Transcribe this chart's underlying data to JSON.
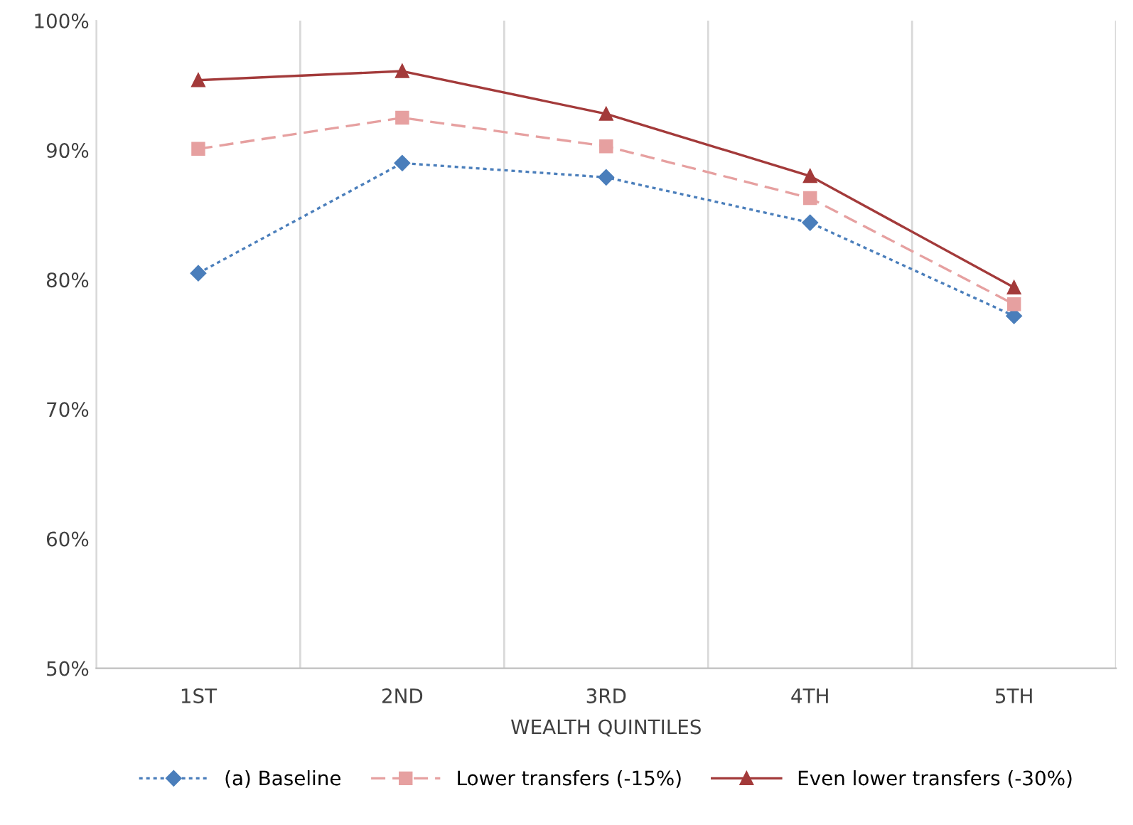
{
  "chart_data": {
    "type": "line",
    "xlabel": "WEALTH QUINTILES",
    "categories": [
      "1ST",
      "2ND",
      "3RD",
      "4TH",
      "5TH"
    ],
    "ylim": [
      50,
      100
    ],
    "yticks": [
      {
        "value": 50,
        "label": "50%"
      },
      {
        "value": 60,
        "label": "60%"
      },
      {
        "value": 70,
        "label": "70%"
      },
      {
        "value": 80,
        "label": "80%"
      },
      {
        "value": 90,
        "label": "90%"
      },
      {
        "value": 100,
        "label": "100%"
      }
    ],
    "grid": "x",
    "legend": "bottom",
    "series": [
      {
        "name": "(a) Baseline",
        "color": "#4a7ebb",
        "marker": "diamond",
        "line_style": "dotted",
        "values": [
          80.5,
          89.0,
          87.9,
          84.4,
          77.2
        ]
      },
      {
        "name": "Lower transfers (-15%)",
        "color": "#e6a0a0",
        "marker": "square",
        "line_style": "dashed",
        "values": [
          90.1,
          92.5,
          90.3,
          86.3,
          78.1
        ]
      },
      {
        "name": "Even lower transfers (-30%)",
        "color": "#a33a3a",
        "marker": "triangle",
        "line_style": "solid",
        "values": [
          95.4,
          96.1,
          92.8,
          88.0,
          79.4
        ]
      }
    ]
  }
}
